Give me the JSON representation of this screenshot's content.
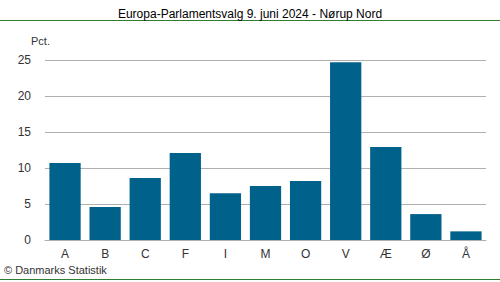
{
  "chart_data": {
    "type": "bar",
    "title": "Europa-Parlamentsvalg 9. juni 2024 - Nørup Nord",
    "ylabel": "Pct.",
    "annotation": "© Danmarks Statistik",
    "categories": [
      "A",
      "B",
      "C",
      "F",
      "I",
      "M",
      "O",
      "V",
      "Æ",
      "Ø",
      "Å"
    ],
    "values": [
      10.7,
      4.6,
      8.6,
      12.1,
      6.5,
      7.5,
      8.2,
      24.7,
      12.9,
      3.6,
      1.2
    ],
    "color": "#00628b",
    "ylim": [
      0,
      25
    ],
    "yticks": [
      0,
      5,
      10,
      15,
      20,
      25
    ],
    "grid": true
  }
}
